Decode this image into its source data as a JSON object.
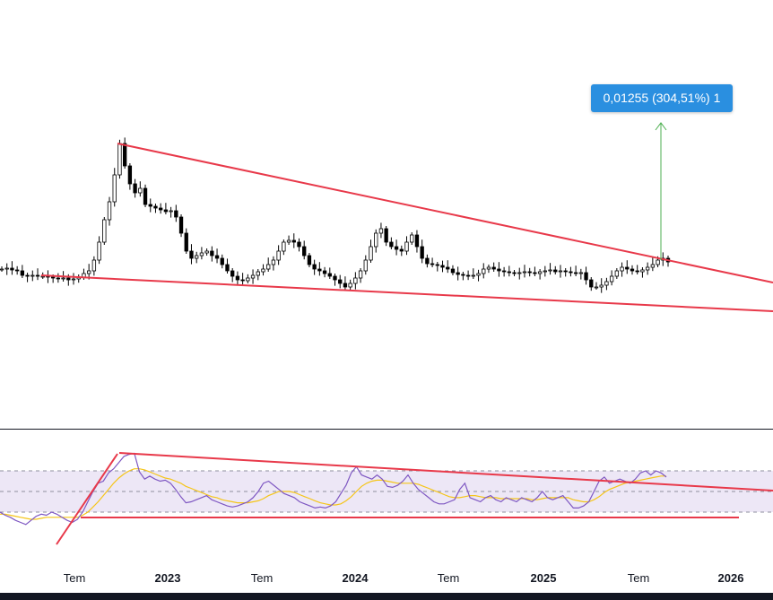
{
  "colors": {
    "candle_up": "#ffffff",
    "candle_down": "#000000",
    "trendline": "#e8394a",
    "rsi_line": "#7e57c2",
    "rsi_ma": "#f5c518",
    "rsi_band": "#ede7f6",
    "measure_label_bg": "#2a8fe0",
    "measure_arrow": "#4caf50"
  },
  "measure_label": "0,01255 (304,51%) 1",
  "chart_data": [
    {
      "type": "candlestick",
      "x_axis": {
        "tick_labels": [
          "Tem",
          "2023",
          "Tem",
          "2024",
          "Tem",
          "2025",
          "Tem",
          "2026"
        ],
        "tick_dates": [
          "2022-07",
          "2023-01",
          "2023-07",
          "2024-01",
          "2024-07",
          "2025-01",
          "2025-07",
          "2026-01"
        ],
        "bold_labels": [
          "2023",
          "2024",
          "2025",
          "2026"
        ]
      },
      "weekly_close": [
        1.0,
        1.01,
        0.99,
        0.98,
        0.93,
        0.92,
        0.93,
        0.92,
        0.92,
        0.91,
        0.9,
        0.89,
        0.9,
        0.88,
        0.89,
        0.91,
        0.95,
        0.98,
        1.1,
        1.3,
        1.55,
        1.75,
        2.05,
        2.4,
        2.15,
        1.95,
        1.85,
        1.9,
        1.72,
        1.7,
        1.68,
        1.66,
        1.64,
        1.65,
        1.58,
        1.4,
        1.2,
        1.12,
        1.15,
        1.18,
        1.2,
        1.15,
        1.12,
        1.05,
        0.98,
        0.92,
        0.88,
        0.87,
        0.9,
        0.93,
        0.97,
        1.0,
        1.05,
        1.1,
        1.2,
        1.3,
        1.32,
        1.3,
        1.25,
        1.15,
        1.05,
        1.0,
        0.98,
        0.95,
        0.92,
        0.88,
        0.84,
        0.8,
        0.84,
        0.9,
        0.98,
        1.1,
        1.25,
        1.4,
        1.45,
        1.3,
        1.25,
        1.22,
        1.2,
        1.3,
        1.38,
        1.25,
        1.12,
        1.06,
        1.05,
        1.04,
        1.02,
        1.0,
        0.96,
        0.94,
        0.93,
        0.92,
        0.93,
        0.95,
        1.0,
        1.02,
        1.0,
        0.98,
        0.97,
        0.96,
        0.95,
        0.96,
        0.97,
        0.96,
        0.95,
        0.97,
        0.98,
        0.99,
        0.97,
        0.98,
        0.97,
        0.96,
        0.95,
        0.96,
        0.88,
        0.8,
        0.8,
        0.82,
        0.86,
        0.92,
        0.98,
        1.02,
        1.0,
        0.98,
        0.97,
        0.99,
        1.02,
        1.05,
        1.1,
        1.12,
        1.08
      ],
      "trendlines": [
        {
          "from": [
            "2022-11",
            "peak"
          ],
          "to": [
            "2026-04",
            "upper-right"
          ]
        },
        {
          "from": [
            "2022-05",
            "base"
          ],
          "to": [
            "2026-04",
            "lower-right"
          ]
        }
      ],
      "measure": {
        "label": "0,01255 (304,51%) 1"
      }
    },
    {
      "type": "line",
      "indicator": "RSI",
      "band": [
        30,
        70
      ],
      "mid": 50,
      "ylim": [
        15,
        90
      ],
      "rsi": [
        30,
        27,
        25,
        22,
        20,
        18,
        22,
        26,
        28,
        27,
        30,
        28,
        25,
        22,
        20,
        23,
        30,
        40,
        50,
        58,
        60,
        68,
        72,
        78,
        84,
        86,
        87,
        69,
        62,
        65,
        62,
        60,
        61,
        58,
        52,
        45,
        39,
        40,
        42,
        44,
        46,
        42,
        40,
        38,
        36,
        35,
        36,
        38,
        40,
        44,
        50,
        58,
        60,
        56,
        52,
        48,
        46,
        44,
        40,
        38,
        36,
        34,
        35,
        34,
        36,
        40,
        48,
        56,
        68,
        74,
        66,
        64,
        62,
        66,
        62,
        55,
        54,
        56,
        60,
        66,
        58,
        52,
        48,
        44,
        40,
        38,
        38,
        40,
        42,
        52,
        58,
        44,
        42,
        40,
        44,
        46,
        42,
        40,
        44,
        42,
        40,
        44,
        42,
        40,
        44,
        50,
        44,
        42,
        44,
        46,
        40,
        34,
        34,
        36,
        40,
        50,
        60,
        64,
        58,
        60,
        62,
        60,
        58,
        62,
        68,
        70,
        66,
        70,
        68,
        64
      ],
      "rsi_ma": [
        28,
        28,
        27,
        26,
        25,
        24,
        23,
        23,
        24,
        25,
        25,
        25,
        25,
        25,
        25,
        25,
        27,
        30,
        35,
        40,
        46,
        52,
        58,
        63,
        67,
        70,
        72,
        72,
        71,
        69,
        67,
        65,
        63,
        62,
        60,
        58,
        55,
        53,
        51,
        49,
        47,
        45,
        44,
        42,
        41,
        40,
        39,
        39,
        39,
        40,
        41,
        43,
        46,
        48,
        50,
        50,
        50,
        49,
        47,
        45,
        43,
        41,
        39,
        38,
        37,
        37,
        38,
        41,
        45,
        50,
        55,
        58,
        60,
        61,
        61,
        60,
        59,
        58,
        58,
        58,
        58,
        57,
        55,
        53,
        51,
        49,
        47,
        45,
        44,
        44,
        45,
        46,
        46,
        45,
        44,
        44,
        44,
        43,
        43,
        43,
        43,
        43,
        43,
        42,
        42,
        43,
        44,
        44,
        44,
        44,
        44,
        42,
        41,
        40,
        40,
        42,
        45,
        49,
        52,
        54,
        56,
        58,
        59,
        60,
        61,
        62,
        63,
        64,
        65,
        65
      ],
      "trendlines": [
        {
          "from": [
            "2022-11",
            "peak"
          ],
          "to": [
            "2026-04",
            "upper-right"
          ]
        },
        {
          "from": [
            "2022-06",
            "30"
          ],
          "to": [
            "2025-11",
            "30"
          ]
        },
        {
          "from": [
            "2022-05",
            "low"
          ],
          "to": [
            "2022-11",
            "peak"
          ]
        }
      ]
    }
  ]
}
